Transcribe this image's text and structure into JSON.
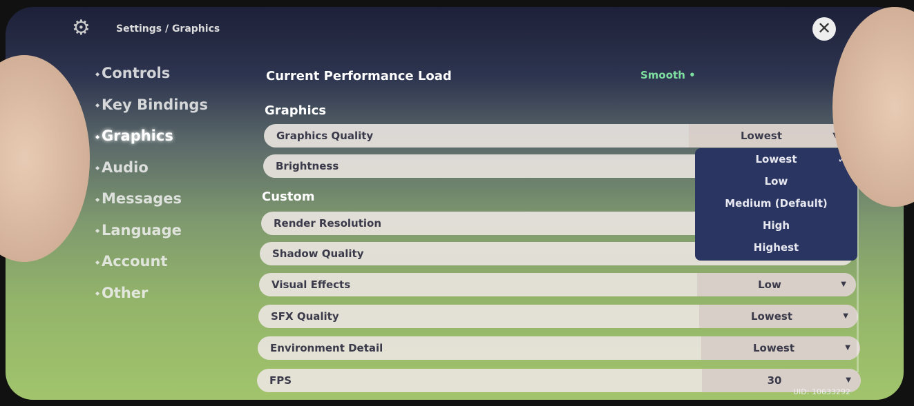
{
  "header": {
    "breadcrumb": "Settings / Graphics",
    "icon": "gear-icon",
    "close_icon": "close-icon"
  },
  "sidebar": {
    "items": [
      {
        "label": "Controls"
      },
      {
        "label": "Key Bindings"
      },
      {
        "label": "Graphics",
        "active": true
      },
      {
        "label": "Audio"
      },
      {
        "label": "Messages"
      },
      {
        "label": "Language"
      },
      {
        "label": "Account"
      },
      {
        "label": "Other"
      }
    ]
  },
  "main": {
    "performance_label": "Current Performance Load",
    "performance_value": "Smooth",
    "performance_color": "#7ee0a0",
    "section_graphics": "Graphics",
    "section_custom": "Custom",
    "rows": [
      {
        "label": "Graphics Quality",
        "value": "Lowest"
      },
      {
        "label": "Brightness"
      },
      {
        "label": "Render Resolution"
      },
      {
        "label": "Shadow Quality"
      },
      {
        "label": "Visual Effects",
        "value": "Low"
      },
      {
        "label": "SFX Quality",
        "value": "Lowest"
      },
      {
        "label": "Environment Detail",
        "value": "Lowest"
      },
      {
        "label": "FPS",
        "value": "30"
      }
    ],
    "dropdown": {
      "options": [
        "Lowest",
        "Low",
        "Medium (Default)",
        "High",
        "Highest"
      ],
      "selected": "Lowest",
      "check": "✓"
    }
  },
  "footer": {
    "uid": "UID: 10633292"
  }
}
